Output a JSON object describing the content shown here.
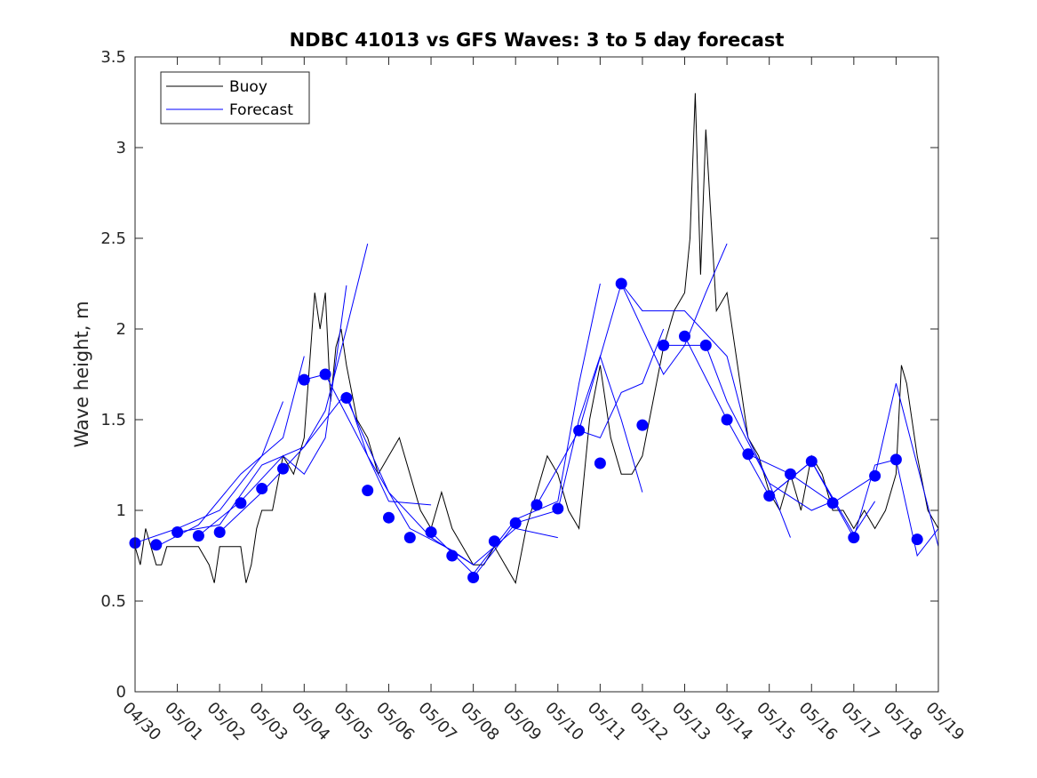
{
  "chart_data": {
    "type": "line",
    "title": "NDBC 41013 vs GFS Waves: 3 to 5 day forecast",
    "xlabel": "",
    "ylabel": "Wave height, m",
    "xlim": [
      "04/30",
      "05/19"
    ],
    "ylim": [
      0,
      3.5
    ],
    "x_ticks": [
      "04/30",
      "05/01",
      "05/02",
      "05/03",
      "05/04",
      "05/05",
      "05/06",
      "05/07",
      "05/08",
      "05/09",
      "05/10",
      "05/11",
      "05/12",
      "05/13",
      "05/14",
      "05/15",
      "05/16",
      "05/17",
      "05/18",
      "05/19"
    ],
    "y_ticks": [
      0,
      0.5,
      1,
      1.5,
      2,
      2.5,
      3,
      3.5
    ],
    "grid": false,
    "legend": {
      "position": "top-left",
      "entries": [
        "Buoy",
        "Forecast"
      ]
    },
    "colors": {
      "buoy": "#000000",
      "forecast": "#0000ff",
      "markers": "#0000ff"
    },
    "series": [
      {
        "name": "Buoy",
        "x": [
          "04/30 00:00",
          "04/30 03:00",
          "04/30 06:00",
          "04/30 09:00",
          "04/30 12:00",
          "04/30 15:00",
          "04/30 18:00",
          "04/30 21:00",
          "05/01 00:00",
          "05/01 06:00",
          "05/01 12:00",
          "05/01 18:00",
          "05/01 21:00",
          "05/02 00:00",
          "05/02 06:00",
          "05/02 12:00",
          "05/02 15:00",
          "05/02 18:00",
          "05/02 21:00",
          "05/03 00:00",
          "05/03 06:00",
          "05/03 12:00",
          "05/03 18:00",
          "05/04 00:00",
          "05/04 03:00",
          "05/04 06:00",
          "05/04 09:00",
          "05/04 12:00",
          "05/04 15:00",
          "05/04 18:00",
          "05/04 21:00",
          "05/05 00:00",
          "05/05 06:00",
          "05/05 12:00",
          "05/05 18:00",
          "05/06 00:00",
          "05/06 06:00",
          "05/06 12:00",
          "05/06 18:00",
          "05/07 00:00",
          "05/07 06:00",
          "05/07 12:00",
          "05/07 18:00",
          "05/08 00:00",
          "05/08 06:00",
          "05/08 12:00",
          "05/08 18:00",
          "05/09 00:00",
          "05/09 06:00",
          "05/09 12:00",
          "05/09 18:00",
          "05/10 00:00",
          "05/10 06:00",
          "05/10 12:00",
          "05/10 18:00",
          "05/11 00:00",
          "05/11 06:00",
          "05/11 12:00",
          "05/11 18:00",
          "05/12 00:00",
          "05/12 06:00",
          "05/12 12:00",
          "05/12 18:00",
          "05/13 00:00",
          "05/13 03:00",
          "05/13 06:00",
          "05/13 09:00",
          "05/13 12:00",
          "05/13 18:00",
          "05/14 00:00",
          "05/14 06:00",
          "05/14 12:00",
          "05/14 18:00",
          "05/15 00:00",
          "05/15 06:00",
          "05/15 12:00",
          "05/15 18:00",
          "05/16 00:00",
          "05/16 06:00",
          "05/16 12:00",
          "05/16 18:00",
          "05/17 00:00",
          "05/17 06:00",
          "05/17 12:00",
          "05/17 18:00",
          "05/18 00:00",
          "05/18 03:00",
          "05/18 06:00",
          "05/18 12:00",
          "05/18 18:00",
          "05/19 00:00"
        ],
        "y": [
          0.8,
          0.7,
          0.9,
          0.8,
          0.7,
          0.7,
          0.8,
          0.8,
          0.8,
          0.8,
          0.8,
          0.7,
          0.6,
          0.8,
          0.8,
          0.8,
          0.6,
          0.7,
          0.9,
          1.0,
          1.0,
          1.3,
          1.2,
          1.4,
          1.8,
          2.2,
          2.0,
          2.2,
          1.6,
          1.9,
          2.0,
          1.8,
          1.5,
          1.4,
          1.2,
          1.3,
          1.4,
          1.2,
          1.0,
          0.9,
          1.1,
          0.9,
          0.8,
          0.7,
          0.7,
          0.8,
          0.7,
          0.6,
          0.9,
          1.1,
          1.3,
          1.2,
          1.0,
          0.9,
          1.5,
          1.8,
          1.4,
          1.2,
          1.2,
          1.3,
          1.6,
          1.9,
          2.1,
          2.2,
          2.5,
          3.3,
          2.3,
          3.1,
          2.1,
          2.2,
          1.8,
          1.4,
          1.3,
          1.1,
          1.0,
          1.2,
          1.0,
          1.3,
          1.2,
          1.0,
          1.0,
          0.9,
          1.0,
          0.9,
          1.0,
          1.2,
          1.8,
          1.7,
          1.3,
          1.0,
          0.9
        ]
      },
      {
        "name": "Forecast",
        "lines": [
          {
            "x": [
              "04/30 00:00",
              "05/01 00:00",
              "05/02 00:00",
              "05/03 00:00",
              "05/03 12:00"
            ],
            "y": [
              0.82,
              0.9,
              1.0,
              1.3,
              1.6
            ]
          },
          {
            "x": [
              "04/30 12:00",
              "05/01 12:00",
              "05/02 12:00",
              "05/03 12:00",
              "05/04 00:00"
            ],
            "y": [
              0.8,
              0.92,
              1.2,
              1.4,
              1.85
            ]
          },
          {
            "x": [
              "05/01 00:00",
              "05/02 00:00",
              "05/03 00:00",
              "05/04 00:00",
              "05/04 12:00",
              "05/05 00:00",
              "05/05 12:00"
            ],
            "y": [
              0.88,
              0.92,
              1.25,
              1.35,
              1.55,
              2.0,
              2.47
            ]
          },
          {
            "x": [
              "05/01 12:00",
              "05/02 12:00",
              "05/03 12:00",
              "05/04 00:00",
              "05/04 12:00",
              "05/05 00:00"
            ],
            "y": [
              0.86,
              1.05,
              1.3,
              1.2,
              1.4,
              2.24
            ]
          },
          {
            "x": [
              "05/02 00:00",
              "05/03 00:00",
              "05/04 00:00",
              "05/05 00:00",
              "05/05 12:00",
              "05/06 00:00",
              "05/07 00:00"
            ],
            "y": [
              0.88,
              1.1,
              1.35,
              1.65,
              1.3,
              1.05,
              1.03
            ]
          },
          {
            "x": [
              "05/04 00:00",
              "05/04 12:00",
              "05/05 12:00",
              "05/06 12:00",
              "05/07 12:00",
              "05/08 00:00"
            ],
            "y": [
              1.72,
              1.75,
              1.3,
              0.9,
              0.78,
              0.7
            ]
          },
          {
            "x": [
              "05/05 00:00",
              "05/06 00:00",
              "05/07 00:00",
              "05/08 00:00",
              "05/09 00:00",
              "05/10 00:00"
            ],
            "y": [
              1.62,
              1.1,
              0.85,
              0.7,
              0.9,
              0.85
            ]
          },
          {
            "x": [
              "05/07 00:00",
              "05/08 00:00",
              "05/09 00:00",
              "05/10 00:00",
              "05/10 12:00",
              "05/11 00:00"
            ],
            "y": [
              0.88,
              0.65,
              0.95,
              1.05,
              1.7,
              2.25
            ]
          },
          {
            "x": [
              "05/08 00:00",
              "05/09 00:00",
              "05/10 00:00",
              "05/10 12:00",
              "05/11 00:00",
              "05/11 12:00",
              "05/12 00:00"
            ],
            "y": [
              0.63,
              0.93,
              1.0,
              1.5,
              1.85,
              1.5,
              1.1
            ]
          },
          {
            "x": [
              "05/09 12:00",
              "05/10 12:00",
              "05/11 00:00",
              "05/11 12:00",
              "05/12 00:00",
              "05/12 12:00"
            ],
            "y": [
              1.03,
              1.44,
              1.4,
              1.65,
              1.7,
              2.0
            ]
          },
          {
            "x": [
              "05/10 12:00",
              "05/11 12:00",
              "05/12 12:00",
              "05/13 00:00",
              "05/13 12:00",
              "05/14 00:00"
            ],
            "y": [
              1.44,
              2.25,
              1.75,
              1.91,
              2.2,
              2.47
            ]
          },
          {
            "x": [
              "05/11 12:00",
              "05/12 00:00",
              "05/13 00:00",
              "05/14 00:00",
              "05/14 12:00",
              "05/15 00:00",
              "05/15 12:00"
            ],
            "y": [
              2.25,
              2.1,
              2.1,
              1.85,
              1.4,
              1.15,
              0.85
            ]
          },
          {
            "x": [
              "05/12 12:00",
              "05/13 12:00",
              "05/14 00:00",
              "05/15 00:00",
              "05/16 00:00",
              "05/16 12:00"
            ],
            "y": [
              1.91,
              1.91,
              1.6,
              1.15,
              1.0,
              1.05
            ]
          },
          {
            "x": [
              "05/13 00:00",
              "05/14 00:00",
              "05/15 00:00",
              "05/16 00:00",
              "05/17 00:00",
              "05/17 12:00"
            ],
            "y": [
              1.96,
              1.5,
              1.08,
              1.27,
              0.87,
              1.05
            ]
          },
          {
            "x": [
              "05/14 12:00",
              "05/15 12:00",
              "05/16 12:00",
              "05/17 12:00",
              "05/18 00:00",
              "05/18 12:00",
              "05/19 00:00"
            ],
            "y": [
              1.31,
              1.2,
              1.04,
              1.19,
              1.7,
              1.25,
              0.8
            ]
          },
          {
            "x": [
              "05/15 00:00",
              "05/16 00:00",
              "05/17 00:00",
              "05/17 12:00",
              "05/18 00:00",
              "05/18 12:00",
              "05/19 00:00"
            ],
            "y": [
              1.08,
              1.27,
              0.85,
              1.25,
              1.28,
              0.75,
              0.9
            ]
          }
        ],
        "markers": {
          "x": [
            "04/30 00:00",
            "04/30 12:00",
            "05/01 00:00",
            "05/01 12:00",
            "05/02 00:00",
            "05/02 12:00",
            "05/03 00:00",
            "05/03 12:00",
            "05/04 00:00",
            "05/04 12:00",
            "05/05 00:00",
            "05/05 12:00",
            "05/06 00:00",
            "05/06 12:00",
            "05/07 00:00",
            "05/07 12:00",
            "05/08 00:00",
            "05/08 12:00",
            "05/09 00:00",
            "05/09 12:00",
            "05/10 00:00",
            "05/10 12:00",
            "05/11 00:00",
            "05/11 12:00",
            "05/12 00:00",
            "05/12 12:00",
            "05/13 00:00",
            "05/13 12:00",
            "05/14 00:00",
            "05/14 12:00",
            "05/15 00:00",
            "05/15 12:00",
            "05/16 00:00",
            "05/16 12:00",
            "05/17 00:00",
            "05/17 12:00",
            "05/18 00:00",
            "05/18 12:00"
          ],
          "y": [
            0.82,
            0.81,
            0.88,
            0.86,
            0.88,
            1.04,
            1.12,
            1.23,
            1.72,
            1.75,
            1.62,
            1.11,
            0.96,
            0.85,
            0.88,
            0.75,
            0.63,
            0.83,
            0.93,
            1.03,
            1.01,
            1.44,
            1.26,
            2.25,
            1.47,
            1.91,
            1.96,
            1.91,
            1.5,
            1.31,
            1.08,
            1.2,
            1.27,
            1.04,
            0.85,
            1.19,
            1.28,
            0.84
          ]
        }
      }
    ]
  }
}
